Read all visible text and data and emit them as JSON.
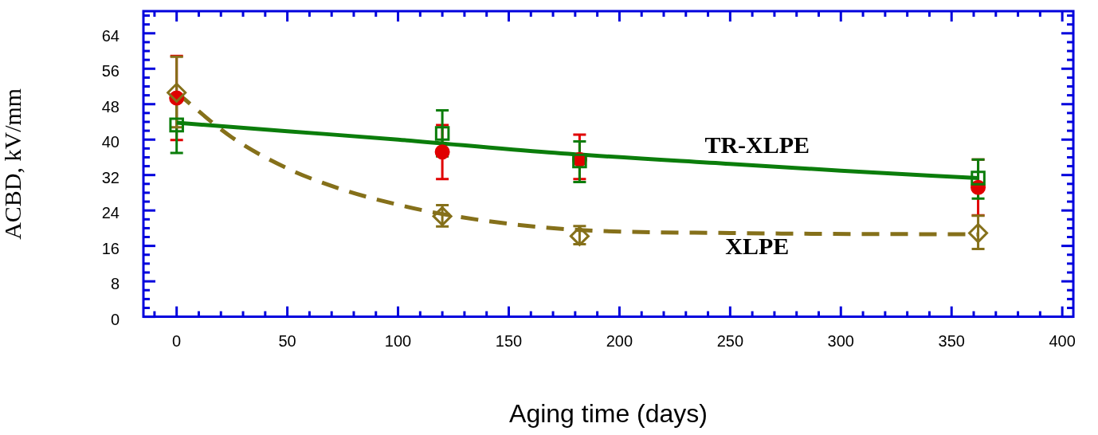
{
  "chart_data": {
    "type": "scatter",
    "xlabel": "Aging time (days)",
    "ylabel": "ACBD, kV/mm",
    "xlim": [
      -15,
      405
    ],
    "ylim": [
      0,
      69
    ],
    "xticks": [
      {
        "value": -10,
        "label": null
      },
      0,
      {
        "value": 10,
        "label": null
      },
      {
        "value": 20,
        "label": null
      },
      {
        "value": 30,
        "label": null
      },
      {
        "value": 40,
        "label": null
      },
      50,
      {
        "value": 60,
        "label": null
      },
      {
        "value": 70,
        "label": null
      },
      {
        "value": 80,
        "label": null
      },
      {
        "value": 90,
        "label": null
      },
      100,
      {
        "value": 110,
        "label": null
      },
      {
        "value": 120,
        "label": null
      },
      {
        "value": 130,
        "label": null
      },
      {
        "value": 140,
        "label": null
      },
      150,
      {
        "value": 160,
        "label": null
      },
      {
        "value": 170,
        "label": null
      },
      {
        "value": 180,
        "label": null
      },
      {
        "value": 190,
        "label": null
      },
      200,
      {
        "value": 210,
        "label": null
      },
      {
        "value": 220,
        "label": null
      },
      {
        "value": 230,
        "label": null
      },
      {
        "value": 240,
        "label": null
      },
      250,
      {
        "value": 260,
        "label": null
      },
      {
        "value": 270,
        "label": null
      },
      {
        "value": 280,
        "label": null
      },
      {
        "value": 290,
        "label": null
      },
      300,
      {
        "value": 310,
        "label": null
      },
      {
        "value": 320,
        "label": null
      },
      {
        "value": 330,
        "label": null
      },
      {
        "value": 340,
        "label": null
      },
      350,
      {
        "value": 360,
        "label": null
      },
      {
        "value": 370,
        "label": null
      },
      {
        "value": 380,
        "label": null
      },
      {
        "value": 390,
        "label": null
      },
      400
    ],
    "yticks": [
      0,
      {
        "value": 2,
        "label": null
      },
      {
        "value": 4,
        "label": null
      },
      {
        "value": 6,
        "label": null
      },
      8,
      {
        "value": 10,
        "label": null
      },
      {
        "value": 12,
        "label": null
      },
      {
        "value": 14,
        "label": null
      },
      16,
      {
        "value": 18,
        "label": null
      },
      {
        "value": 20,
        "label": null
      },
      {
        "value": 22,
        "label": null
      },
      24,
      {
        "value": 26,
        "label": null
      },
      {
        "value": 28,
        "label": null
      },
      {
        "value": 30,
        "label": null
      },
      32,
      {
        "value": 34,
        "label": null
      },
      {
        "value": 36,
        "label": null
      },
      {
        "value": 38,
        "label": null
      },
      40,
      {
        "value": 42,
        "label": null
      },
      {
        "value": 44,
        "label": null
      },
      {
        "value": 46,
        "label": null
      },
      48,
      {
        "value": 50,
        "label": null
      },
      {
        "value": 52,
        "label": null
      },
      {
        "value": 54,
        "label": null
      },
      56,
      {
        "value": 58,
        "label": null
      },
      {
        "value": 60,
        "label": null
      },
      {
        "value": 62,
        "label": null
      },
      64,
      {
        "value": 66,
        "label": null
      },
      {
        "value": 68,
        "label": null
      }
    ],
    "grid": false,
    "legend": false,
    "series": [
      {
        "type": "line",
        "name": "TR-XLPE",
        "color": "#0b7d0b",
        "line_style": "solid",
        "marker": "none",
        "x": [
          0,
          50,
          100,
          168,
          250,
          300,
          362
        ],
        "values": [
          43.8,
          41.9,
          40.0,
          37.1,
          34.5,
          33.0,
          31.3
        ]
      },
      {
        "type": "line",
        "name": "XLPE",
        "color": "#85701a",
        "line_style": "dashed",
        "marker": "none",
        "x": [
          0,
          25,
          50,
          75,
          100,
          120,
          150,
          182,
          250,
          362
        ],
        "values": [
          50.6,
          40.5,
          33.5,
          28.7,
          25.3,
          23.2,
          21.0,
          19.6,
          18.9,
          18.6
        ]
      },
      {
        "type": "scatter",
        "color": "#e00000",
        "marker": "circle",
        "x": [
          0,
          120,
          182,
          362
        ],
        "values": [
          49.4,
          37.2,
          35.5,
          29.2
        ],
        "errors": [
          9.5,
          [
            31.1,
            43.3
          ],
          [
            31.1,
            41.1
          ],
          6.3
        ]
      },
      {
        "type": "scatter",
        "color": "#0b7d0b",
        "marker": "square",
        "x": [
          0,
          120,
          182,
          362
        ],
        "values": [
          43.3,
          41.4,
          35.2,
          31.3
        ],
        "errors": [
          6.3,
          5.2,
          [
            30.4,
            39.6
          ],
          [
            26.7,
            35.5
          ]
        ]
      },
      {
        "type": "scatter",
        "color": "#85701a",
        "marker": "diamond",
        "x": [
          0,
          120,
          182,
          362
        ],
        "values": [
          50.6,
          22.7,
          18.2,
          18.9
        ],
        "errors": [
          [
            42.8,
            58.7
          ],
          [
            20.4,
            25.2
          ],
          [
            16.4,
            20.5
          ],
          [
            15.3,
            22.8
          ]
        ]
      }
    ]
  }
}
